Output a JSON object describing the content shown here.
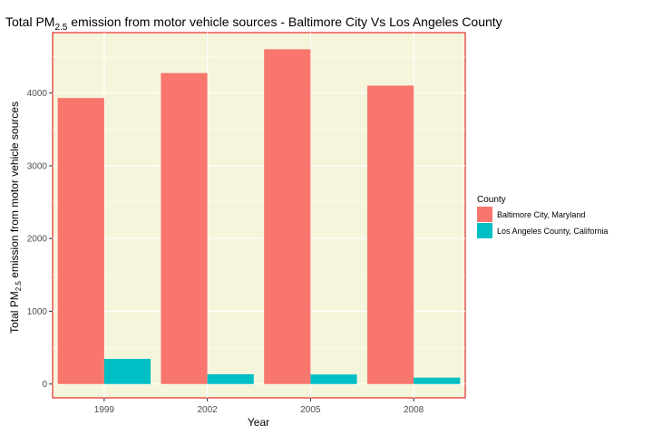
{
  "chart_data": {
    "type": "bar",
    "title_prefix": "Total PM",
    "title_sub": "2.5",
    "title_suffix": " emission from motor vehicle sources - Baltimore City Vs Los Angeles County",
    "xlabel": "Year",
    "ylabel_prefix": "Total PM",
    "ylabel_sub": "2.5",
    "ylabel_suffix": " emission from motor vehicle sources",
    "categories": [
      "1999",
      "2002",
      "2005",
      "2008"
    ],
    "ylim": [
      -190,
      4830
    ],
    "yticks": [
      0,
      1000,
      2000,
      3000,
      4000
    ],
    "ytick_labels": [
      "0",
      "1000",
      "2000",
      "3000",
      "4000"
    ],
    "grid": true,
    "legend_title": "County",
    "legend_position": "right",
    "panel_background": "#f5f5dc",
    "panel_border": "#e30000",
    "series": [
      {
        "name": "Baltimore City, Maryland",
        "color": "#f8766d",
        "values": [
          3931,
          4274,
          4601,
          4102
        ]
      },
      {
        "name": "Los Angeles County, California",
        "color": "#00bfc4",
        "values": [
          346,
          134,
          131,
          88
        ]
      }
    ]
  }
}
